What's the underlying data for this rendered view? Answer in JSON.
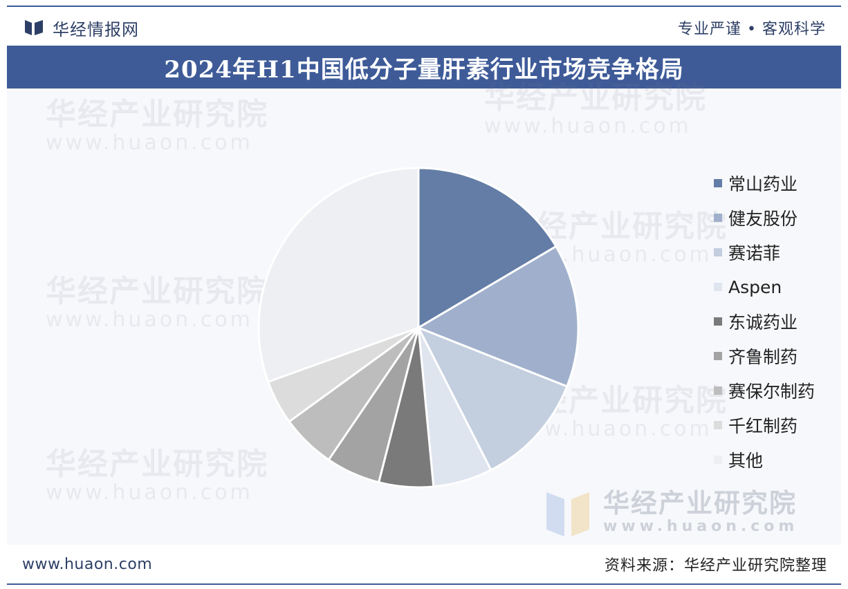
{
  "header": {
    "brand": "华经情报网",
    "slogan": "专业严谨 • 客观科学"
  },
  "title": "2024年H1中国低分子量肝素行业市场竞争格局",
  "watermark": {
    "text": "华经产业研究院",
    "url": "www.huaon.com"
  },
  "footer": {
    "website": "www.huaon.com",
    "source": "资料来源：华经产业研究院整理"
  },
  "colors": {
    "brand": "#3e5b98"
  },
  "chart_data": {
    "type": "pie",
    "title": "2024年H1中国低分子量肝素行业市场竞争格局",
    "legend_position": "right",
    "start_angle_deg": 0,
    "direction": "clockwise",
    "slices": [
      {
        "label": "常山药业",
        "value": 16.5,
        "color": "#647da6"
      },
      {
        "label": "健友股份",
        "value": 14.5,
        "color": "#a0b0cc"
      },
      {
        "label": "赛诺菲",
        "value": 11.5,
        "color": "#c3cedf"
      },
      {
        "label": "Aspen",
        "value": 6.0,
        "color": "#dfe5ef"
      },
      {
        "label": "东诚药业",
        "value": 5.5,
        "color": "#7a7a7a"
      },
      {
        "label": "齐鲁制药",
        "value": 5.5,
        "color": "#a3a3a3"
      },
      {
        "label": "赛保尔制药",
        "value": 5.5,
        "color": "#bdbdbd"
      },
      {
        "label": "千红制药",
        "value": 4.5,
        "color": "#dcdcdc"
      },
      {
        "label": "其他",
        "value": 30.5,
        "color": "#eeeff3"
      }
    ]
  }
}
